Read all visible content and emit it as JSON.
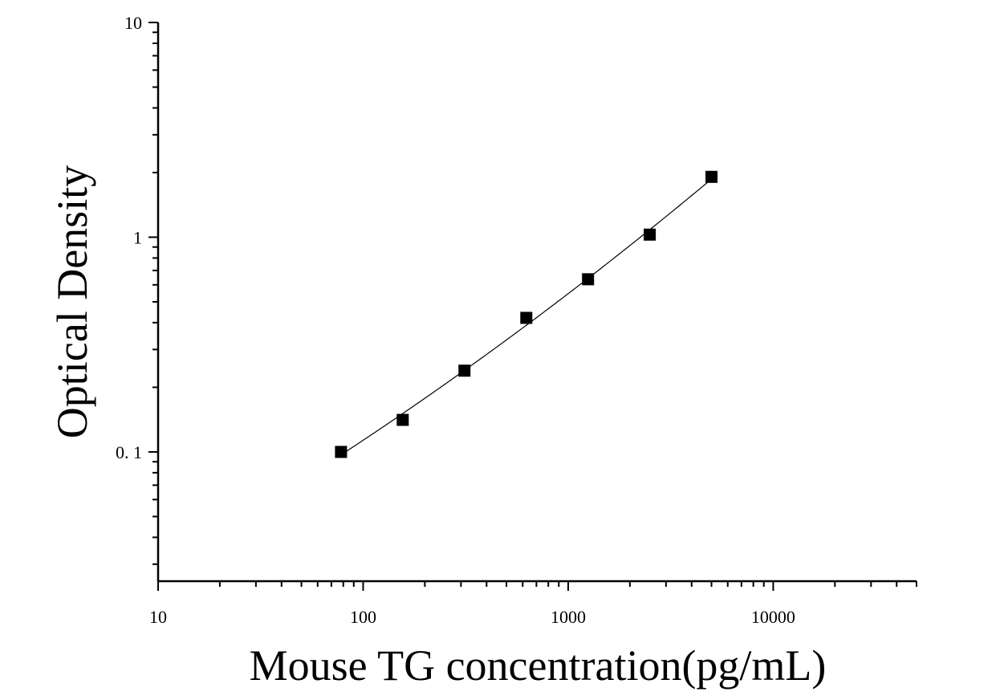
{
  "chart_data": {
    "type": "scatter",
    "title": "",
    "xlabel": "Mouse TG concentration(pg/mL)",
    "ylabel": "Optical Density",
    "xscale": "log",
    "yscale": "log",
    "xlim": [
      10,
      50000
    ],
    "ylim": [
      0.025,
      10
    ],
    "x_ticks": [
      {
        "value": 10,
        "label": "10"
      },
      {
        "value": 100,
        "label": "100"
      },
      {
        "value": 1000,
        "label": "1000"
      },
      {
        "value": 10000,
        "label": "10000"
      }
    ],
    "y_ticks": [
      {
        "value": 0.1,
        "label": "0. 1"
      },
      {
        "value": 1,
        "label": "1"
      },
      {
        "value": 10,
        "label": "10"
      }
    ],
    "grid": false,
    "legend": "none",
    "series": [
      {
        "points": [
          {
            "x": 78,
            "y": 0.1
          },
          {
            "x": 156,
            "y": 0.141
          },
          {
            "x": 312,
            "y": 0.239
          },
          {
            "x": 625,
            "y": 0.421
          },
          {
            "x": 1250,
            "y": 0.637
          },
          {
            "x": 2500,
            "y": 1.028
          },
          {
            "x": 5000,
            "y": 1.91
          }
        ],
        "marker": "square",
        "color": "#000000",
        "fit_curve": true
      }
    ]
  }
}
